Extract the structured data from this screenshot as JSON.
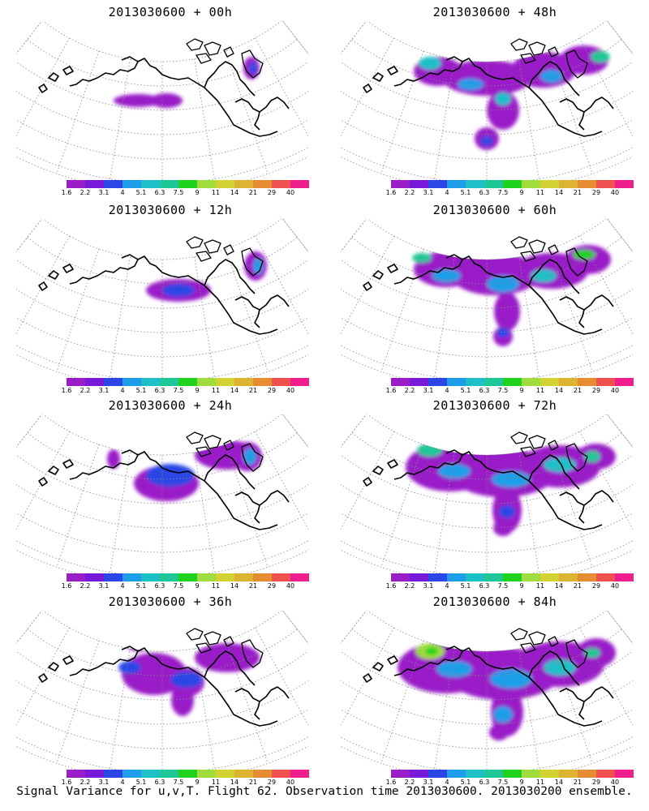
{
  "panels": [
    {
      "title": "2013030600 + 00h",
      "intensity": 0
    },
    {
      "title": "2013030600 + 48h",
      "intensity": 4
    },
    {
      "title": "2013030600 + 12h",
      "intensity": 1
    },
    {
      "title": "2013030600 + 60h",
      "intensity": 5
    },
    {
      "title": "2013030600 + 24h",
      "intensity": 2
    },
    {
      "title": "2013030600 + 72h",
      "intensity": 6
    },
    {
      "title": "2013030600 + 36h",
      "intensity": 3
    },
    {
      "title": "2013030600 + 84h",
      "intensity": 7
    }
  ],
  "colorbar": {
    "labels": [
      "1.6",
      "2.2",
      "3.1",
      "4",
      "5.1",
      "6.3",
      "7.5",
      "9",
      "11",
      "14",
      "21",
      "29",
      "40"
    ],
    "colors": [
      "#9a1ec8",
      "#7818d8",
      "#2a46e6",
      "#1e9ee8",
      "#1ec0c8",
      "#1ec896",
      "#1ed21e",
      "#a0dc3c",
      "#d2d232",
      "#dcb432",
      "#e68c32",
      "#f05050",
      "#f01e8c"
    ]
  },
  "caption": "Signal Variance for u,v,T. Flight 62. Observation time 2013030600. 2013030200 ensemble."
}
